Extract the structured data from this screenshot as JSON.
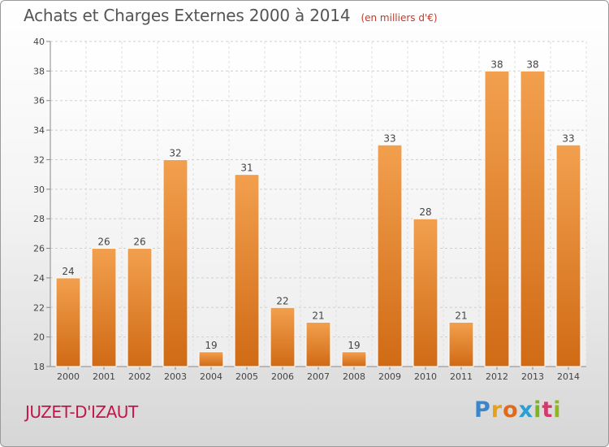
{
  "title": "Achats et Charges Externes 2000 à 2014",
  "unit_note": "(en milliers d'€)",
  "location": "JUZET-D'IZAUT",
  "brand": {
    "letters": [
      "P",
      "r",
      "o",
      "x",
      "i",
      "t",
      "i"
    ],
    "colors": [
      "#3a86c8",
      "#e6a019",
      "#e06a1b",
      "#2a9fd6",
      "#7ab51d",
      "#d23a6e",
      "#8fb820"
    ]
  },
  "chart_data": {
    "type": "bar",
    "categories": [
      "2000",
      "2001",
      "2002",
      "2003",
      "2004",
      "2005",
      "2006",
      "2007",
      "2008",
      "2009",
      "2010",
      "2011",
      "2012",
      "2013",
      "2014"
    ],
    "values": [
      24,
      26,
      26,
      32,
      19,
      31,
      22,
      21,
      19,
      33,
      28,
      21,
      38,
      38,
      33
    ],
    "ylim": [
      18,
      40
    ],
    "yticks": [
      18,
      20,
      22,
      24,
      26,
      28,
      30,
      32,
      34,
      36,
      38,
      40
    ],
    "grid": true,
    "bar_color": "#f2a04e",
    "bar_color_dark": "#d06a15"
  }
}
